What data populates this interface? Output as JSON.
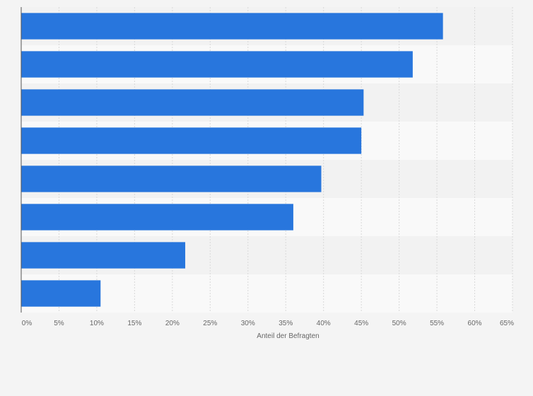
{
  "chart_data": {
    "type": "bar",
    "orientation": "horizontal",
    "categories": [
      "",
      "",
      "",
      "",
      "",
      "",
      "",
      ""
    ],
    "values": [
      55.8,
      51.8,
      45.3,
      45.0,
      39.7,
      36.0,
      21.7,
      10.5
    ],
    "unit": "%",
    "xlim": [
      0,
      65
    ],
    "x_ticks": [
      0,
      5,
      10,
      15,
      20,
      25,
      30,
      35,
      40,
      45,
      50,
      55,
      60,
      65
    ],
    "tick_labels": [
      "0%",
      "5%",
      "10%",
      "15%",
      "20%",
      "25%",
      "30%",
      "35%",
      "40%",
      "45%",
      "50%",
      "55%",
      "60%",
      "65%"
    ],
    "xlabel": "Anteil der Befragten",
    "ylabel": "",
    "title": "",
    "grid": true,
    "legend": "none",
    "colors": {
      "bar": "#2876dd",
      "band_dark": "#f2f2f2",
      "band_light": "#f9f9f9",
      "grid": "#d9d9d9",
      "axis": "#555555"
    }
  }
}
